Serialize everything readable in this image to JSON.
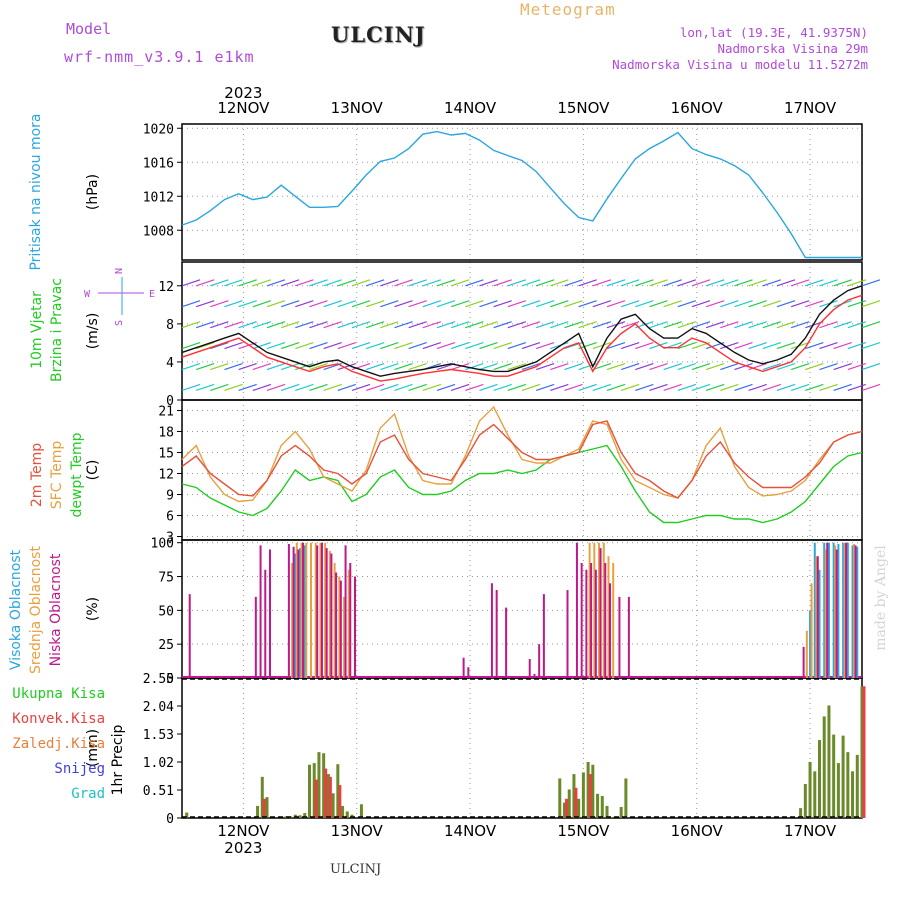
{
  "header": {
    "model_label": "Model",
    "model_name": "wrf-nmm_v3.9.1 e1km",
    "station": "ULCINJ",
    "product": "Meteogram",
    "coords": "lon,lat (19.3E, 41.9375N)",
    "elevation": "Nadmorska Visina 29m",
    "model_elevation": "Nadmorska Visina u modelu 11.5272m"
  },
  "footer": {
    "station": "ULCINJ",
    "credit": "made by Angel"
  },
  "colors": {
    "pressure": "#2aa6e0",
    "temp2m": "#e8503a",
    "sfc": "#e8a040",
    "dewpt": "#22cc22",
    "cloud_high": "#2aa6e0",
    "cloud_mid": "#e8a040",
    "cloud_low": "#c0188a",
    "precip_total": "#6a8a2a",
    "precip_conv": "#e84040",
    "wind_speed": "#ff3030",
    "wind_gust": "#111111"
  },
  "chart_data": [
    {
      "type": "line",
      "id": "pressure",
      "ylabel": "Pritisak na nivou mora",
      "unit": "(hPa)",
      "yticks": [
        1008,
        1012,
        1016,
        1020
      ],
      "ylim": [
        1004.5,
        1020.5
      ],
      "x_hours": [
        0,
        3,
        6,
        9,
        12,
        15,
        18,
        21,
        24,
        27,
        30,
        33,
        36,
        39,
        42,
        45,
        48,
        51,
        54,
        57,
        60,
        63,
        66,
        69,
        72,
        75,
        78,
        81,
        84,
        87,
        90,
        93,
        96,
        99,
        102,
        105,
        108,
        111,
        114,
        117,
        120,
        123,
        126,
        129,
        132,
        135,
        138,
        141,
        144
      ],
      "series": [
        {
          "name": "",
          "values": [
            1008.6,
            1009.2,
            1010.3,
            1011.6,
            1012.3,
            1011.6,
            1011.9,
            1013.3,
            1012.0,
            1010.7,
            1010.7,
            1010.8,
            1012.6,
            1014.5,
            1016.1,
            1016.5,
            1017.6,
            1019.3,
            1019.6,
            1019.2,
            1019.4,
            1018.6,
            1017.4,
            1016.8,
            1016.2,
            1014.9,
            1013.0,
            1011.1,
            1009.5,
            1009.1,
            1011.7,
            1014.1,
            1016.4,
            1017.6,
            1018.5,
            1019.5,
            1017.6,
            1016.9,
            1016.4,
            1015.6,
            1014.5,
            1012.4,
            1010.1,
            1007.6,
            1004.8,
            1004.8,
            1004.8,
            1004.8,
            1004.8
          ]
        }
      ]
    },
    {
      "type": "line",
      "id": "wind",
      "ylabel": [
        "10m Vjetar",
        "Brzina i Pravac"
      ],
      "unit": "(m/s)",
      "compass": [
        "N",
        "W",
        "E",
        "S"
      ],
      "yticks": [
        0,
        4,
        8,
        12
      ],
      "ylim": [
        0,
        14.5
      ],
      "x_hours": [
        0,
        3,
        6,
        9,
        12,
        15,
        18,
        21,
        24,
        27,
        30,
        33,
        36,
        39,
        42,
        45,
        48,
        51,
        54,
        57,
        60,
        63,
        66,
        69,
        72,
        75,
        78,
        81,
        84,
        87,
        90,
        93,
        96,
        99,
        102,
        105,
        108,
        111,
        114,
        117,
        120,
        123,
        126,
        129,
        132,
        135,
        138,
        141,
        144
      ],
      "series": [
        {
          "name": "",
          "values": [
            4.5,
            5.0,
            5.5,
            6.0,
            6.5,
            5.5,
            4.5,
            4.0,
            3.5,
            3.0,
            3.5,
            3.8,
            3.0,
            2.5,
            2.0,
            2.2,
            2.5,
            2.8,
            3.0,
            3.2,
            3.0,
            2.8,
            2.5,
            2.5,
            3.0,
            3.5,
            4.5,
            5.5,
            6.0,
            3.0,
            5.5,
            7.0,
            8.0,
            6.5,
            5.5,
            5.5,
            6.5,
            6.0,
            5.0,
            4.0,
            3.5,
            3.0,
            3.5,
            4.0,
            5.5,
            8.0,
            9.5,
            10.5,
            11.0
          ]
        },
        {
          "name": "",
          "values": [
            5.0,
            5.5,
            6.0,
            6.5,
            7.0,
            6.0,
            5.0,
            4.5,
            4.0,
            3.5,
            4.0,
            4.2,
            3.5,
            3.0,
            2.5,
            2.8,
            3.0,
            3.2,
            3.5,
            3.8,
            3.5,
            3.2,
            3.0,
            3.0,
            3.5,
            4.0,
            5.0,
            6.0,
            7.0,
            3.5,
            6.5,
            8.5,
            9.0,
            7.5,
            6.5,
            6.5,
            7.5,
            7.0,
            6.0,
            5.0,
            4.2,
            3.8,
            4.2,
            4.8,
            6.5,
            9.0,
            10.5,
            11.5,
            12.0
          ]
        }
      ]
    },
    {
      "type": "line",
      "id": "temperature",
      "ylabel": [
        "2m Temp",
        "SFC Temp",
        "dewpt Temp"
      ],
      "unit": "(C)",
      "yticks": [
        3,
        6,
        9,
        12,
        15,
        18,
        21
      ],
      "ylim": [
        2.5,
        22.5
      ],
      "x_hours": [
        0,
        3,
        6,
        9,
        12,
        15,
        18,
        21,
        24,
        27,
        30,
        33,
        36,
        39,
        42,
        45,
        48,
        51,
        54,
        57,
        60,
        63,
        66,
        69,
        72,
        75,
        78,
        81,
        84,
        87,
        90,
        93,
        96,
        99,
        102,
        105,
        108,
        111,
        114,
        117,
        120,
        123,
        126,
        129,
        132,
        135,
        138,
        141,
        144
      ],
      "series": [
        {
          "name": "2m Temp",
          "values": [
            13.0,
            14.5,
            12.0,
            10.5,
            9.0,
            8.8,
            11.0,
            14.5,
            16.0,
            14.5,
            12.5,
            12.0,
            10.5,
            12.0,
            16.5,
            17.5,
            14.0,
            12.0,
            11.5,
            11.0,
            14.0,
            17.5,
            19.0,
            17.0,
            15.0,
            14.0,
            14.0,
            14.5,
            15.0,
            19.0,
            19.5,
            15.0,
            12.0,
            11.0,
            9.5,
            8.5,
            11.0,
            14.5,
            16.5,
            13.5,
            11.5,
            10.0,
            10.0,
            10.0,
            11.5,
            13.5,
            16.5,
            17.5,
            18.0
          ]
        },
        {
          "name": "SFC Temp",
          "values": [
            14.0,
            16.0,
            11.5,
            9.0,
            8.0,
            8.2,
            11.0,
            16.0,
            18.0,
            15.5,
            11.5,
            10.5,
            9.5,
            12.5,
            18.5,
            20.5,
            14.5,
            11.0,
            10.5,
            10.5,
            14.5,
            19.5,
            21.5,
            17.5,
            14.0,
            13.5,
            13.5,
            14.5,
            15.5,
            19.5,
            19.0,
            14.0,
            11.0,
            10.0,
            9.0,
            8.5,
            11.0,
            16.0,
            18.5,
            13.0,
            10.0,
            8.8,
            9.0,
            9.5,
            11.0,
            14.0,
            16.5,
            17.5,
            18.0
          ]
        },
        {
          "name": "dewpt Temp",
          "values": [
            10.5,
            10.0,
            8.5,
            7.5,
            6.5,
            6.0,
            7.0,
            9.5,
            12.5,
            11.0,
            11.5,
            11.0,
            8.0,
            9.0,
            11.5,
            12.5,
            10.0,
            9.0,
            9.0,
            9.5,
            11.0,
            12.0,
            12.0,
            12.5,
            12.0,
            12.5,
            14.0,
            14.5,
            15.0,
            15.5,
            16.0,
            13.0,
            9.5,
            6.5,
            5.0,
            5.0,
            5.5,
            6.0,
            6.0,
            5.5,
            5.5,
            5.0,
            5.5,
            6.5,
            8.0,
            10.5,
            13.0,
            14.5,
            15.0
          ]
        }
      ]
    },
    {
      "type": "bar",
      "id": "clouds",
      "ylabel": [
        "Visoka Oblacnost",
        "Srednja Oblacnost",
        "Niska Oblacnost"
      ],
      "unit": "(%)",
      "yticks": [
        0,
        25,
        50,
        75,
        100
      ],
      "ylim": [
        0,
        102
      ],
      "series": [
        {
          "name": "Visoka Oblacnost",
          "x_hours": [
            24,
            25,
            26,
            133,
            134,
            135,
            136,
            137,
            138,
            139,
            140,
            141,
            142,
            143
          ],
          "values": [
            92,
            96,
            98,
            50,
            100,
            80,
            100,
            100,
            100,
            99,
            100,
            100,
            98,
            97
          ]
        },
        {
          "name": "Srednja Oblacnost",
          "x_hours": [
            23,
            24,
            25,
            26,
            27,
            28,
            29,
            30,
            31,
            32,
            33,
            34,
            35,
            86,
            87,
            88,
            89,
            90,
            91,
            132,
            133,
            134,
            136,
            138,
            140,
            142
          ],
          "values": [
            85,
            100,
            100,
            100,
            100,
            100,
            100,
            100,
            94,
            85,
            75,
            60,
            80,
            100,
            100,
            100,
            100,
            90,
            85,
            35,
            70,
            90,
            95,
            98,
            100,
            99
          ]
        },
        {
          "name": "Niska Oblacnost",
          "x_hours": [
            1,
            15,
            16,
            17,
            18,
            22,
            23,
            24,
            25,
            28,
            29,
            30,
            31,
            32,
            33,
            34,
            35,
            36,
            59,
            60,
            65,
            66,
            68,
            73,
            74,
            75,
            76,
            81,
            83,
            84,
            85,
            86,
            87,
            88,
            89,
            90,
            92,
            94,
            131,
            134,
            136,
            138,
            140,
            142
          ],
          "values": [
            62,
            60,
            98,
            80,
            95,
            99,
            97,
            95,
            100,
            98,
            100,
            96,
            92,
            78,
            72,
            98,
            85,
            75,
            15,
            8,
            70,
            65,
            52,
            14,
            3,
            25,
            62,
            65,
            100,
            85,
            80,
            85,
            80,
            96,
            85,
            70,
            60,
            60,
            23,
            90,
            100,
            95,
            100,
            98
          ]
        }
      ]
    },
    {
      "type": "bar",
      "id": "precip",
      "ylabel": "1hr Precip",
      "unit": "(mm)",
      "legend": [
        "Ukupna Kisa",
        "Konvek.Kisa",
        "Zaledj.Kisa",
        "Snijeg",
        "Grad"
      ],
      "yticks": [
        0,
        0.51,
        1.02,
        1.53,
        2.04,
        2.55
      ],
      "ylim": [
        0,
        2.55
      ],
      "series": [
        {
          "name": "Ukupna Kisa",
          "x_hours": [
            1,
            16,
            17,
            18,
            22,
            23,
            24,
            25,
            26,
            27,
            28,
            29,
            30,
            31,
            32,
            33,
            34,
            35,
            36,
            38,
            80,
            81,
            82,
            83,
            84,
            85,
            86,
            87,
            88,
            89,
            90,
            91,
            93,
            94,
            131,
            132,
            133,
            134,
            135,
            136,
            137,
            138,
            139,
            140,
            141,
            142,
            143,
            144
          ],
          "values": [
            0.1,
            0.22,
            0.75,
            0.38,
            0.03,
            0.03,
            0.06,
            0.05,
            0.09,
            0.97,
            1.0,
            1.2,
            1.18,
            0.8,
            0.45,
            0.98,
            0.22,
            0.12,
            0.06,
            0.25,
            0.72,
            0.28,
            0.52,
            0.8,
            0.35,
            0.83,
            1.02,
            0.97,
            0.44,
            0.4,
            0.22,
            0.02,
            0.2,
            0.72,
            0.18,
            0.62,
            1.02,
            0.85,
            1.42,
            1.85,
            2.05,
            1.52,
            1.0,
            1.5,
            1.2,
            0.85,
            1.15,
            2.4
          ]
        },
        {
          "name": "Konvek.Kisa",
          "x_hours": [
            17,
            28,
            30,
            31,
            33,
            81,
            83,
            86,
            144
          ],
          "values": [
            0.35,
            0.7,
            0.9,
            0.75,
            0.6,
            0.35,
            0.55,
            0.8,
            2.4
          ]
        }
      ]
    }
  ],
  "time_axis": {
    "year": "2023",
    "days": [
      "12NOV",
      "13NOV",
      "14NOV",
      "15NOV",
      "16NOV",
      "17NOV"
    ],
    "start_hour_offset": -13
  }
}
